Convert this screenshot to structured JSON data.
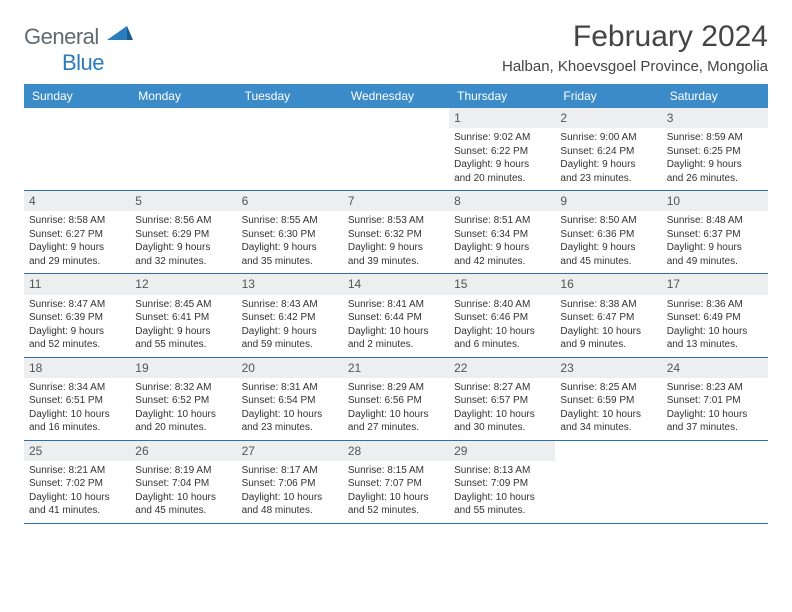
{
  "logo": {
    "text1": "General",
    "text2": "Blue"
  },
  "title": "February 2024",
  "location": "Halban, Khoevsgoel Province, Mongolia",
  "colors": {
    "header_bg": "#3b8bc9",
    "divider": "#2f6fa8",
    "daynum_bg": "#eceeef",
    "text": "#333333",
    "logo_gray": "#5f6b72",
    "logo_blue": "#2b7bbf"
  },
  "day_headers": [
    "Sunday",
    "Monday",
    "Tuesday",
    "Wednesday",
    "Thursday",
    "Friday",
    "Saturday"
  ],
  "weeks": [
    [
      {
        "empty": true
      },
      {
        "empty": true
      },
      {
        "empty": true
      },
      {
        "empty": true
      },
      {
        "num": "1",
        "sunrise": "Sunrise: 9:02 AM",
        "sunset": "Sunset: 6:22 PM",
        "day1": "Daylight: 9 hours",
        "day2": "and 20 minutes."
      },
      {
        "num": "2",
        "sunrise": "Sunrise: 9:00 AM",
        "sunset": "Sunset: 6:24 PM",
        "day1": "Daylight: 9 hours",
        "day2": "and 23 minutes."
      },
      {
        "num": "3",
        "sunrise": "Sunrise: 8:59 AM",
        "sunset": "Sunset: 6:25 PM",
        "day1": "Daylight: 9 hours",
        "day2": "and 26 minutes."
      }
    ],
    [
      {
        "num": "4",
        "sunrise": "Sunrise: 8:58 AM",
        "sunset": "Sunset: 6:27 PM",
        "day1": "Daylight: 9 hours",
        "day2": "and 29 minutes."
      },
      {
        "num": "5",
        "sunrise": "Sunrise: 8:56 AM",
        "sunset": "Sunset: 6:29 PM",
        "day1": "Daylight: 9 hours",
        "day2": "and 32 minutes."
      },
      {
        "num": "6",
        "sunrise": "Sunrise: 8:55 AM",
        "sunset": "Sunset: 6:30 PM",
        "day1": "Daylight: 9 hours",
        "day2": "and 35 minutes."
      },
      {
        "num": "7",
        "sunrise": "Sunrise: 8:53 AM",
        "sunset": "Sunset: 6:32 PM",
        "day1": "Daylight: 9 hours",
        "day2": "and 39 minutes."
      },
      {
        "num": "8",
        "sunrise": "Sunrise: 8:51 AM",
        "sunset": "Sunset: 6:34 PM",
        "day1": "Daylight: 9 hours",
        "day2": "and 42 minutes."
      },
      {
        "num": "9",
        "sunrise": "Sunrise: 8:50 AM",
        "sunset": "Sunset: 6:36 PM",
        "day1": "Daylight: 9 hours",
        "day2": "and 45 minutes."
      },
      {
        "num": "10",
        "sunrise": "Sunrise: 8:48 AM",
        "sunset": "Sunset: 6:37 PM",
        "day1": "Daylight: 9 hours",
        "day2": "and 49 minutes."
      }
    ],
    [
      {
        "num": "11",
        "sunrise": "Sunrise: 8:47 AM",
        "sunset": "Sunset: 6:39 PM",
        "day1": "Daylight: 9 hours",
        "day2": "and 52 minutes."
      },
      {
        "num": "12",
        "sunrise": "Sunrise: 8:45 AM",
        "sunset": "Sunset: 6:41 PM",
        "day1": "Daylight: 9 hours",
        "day2": "and 55 minutes."
      },
      {
        "num": "13",
        "sunrise": "Sunrise: 8:43 AM",
        "sunset": "Sunset: 6:42 PM",
        "day1": "Daylight: 9 hours",
        "day2": "and 59 minutes."
      },
      {
        "num": "14",
        "sunrise": "Sunrise: 8:41 AM",
        "sunset": "Sunset: 6:44 PM",
        "day1": "Daylight: 10 hours",
        "day2": "and 2 minutes."
      },
      {
        "num": "15",
        "sunrise": "Sunrise: 8:40 AM",
        "sunset": "Sunset: 6:46 PM",
        "day1": "Daylight: 10 hours",
        "day2": "and 6 minutes."
      },
      {
        "num": "16",
        "sunrise": "Sunrise: 8:38 AM",
        "sunset": "Sunset: 6:47 PM",
        "day1": "Daylight: 10 hours",
        "day2": "and 9 minutes."
      },
      {
        "num": "17",
        "sunrise": "Sunrise: 8:36 AM",
        "sunset": "Sunset: 6:49 PM",
        "day1": "Daylight: 10 hours",
        "day2": "and 13 minutes."
      }
    ],
    [
      {
        "num": "18",
        "sunrise": "Sunrise: 8:34 AM",
        "sunset": "Sunset: 6:51 PM",
        "day1": "Daylight: 10 hours",
        "day2": "and 16 minutes."
      },
      {
        "num": "19",
        "sunrise": "Sunrise: 8:32 AM",
        "sunset": "Sunset: 6:52 PM",
        "day1": "Daylight: 10 hours",
        "day2": "and 20 minutes."
      },
      {
        "num": "20",
        "sunrise": "Sunrise: 8:31 AM",
        "sunset": "Sunset: 6:54 PM",
        "day1": "Daylight: 10 hours",
        "day2": "and 23 minutes."
      },
      {
        "num": "21",
        "sunrise": "Sunrise: 8:29 AM",
        "sunset": "Sunset: 6:56 PM",
        "day1": "Daylight: 10 hours",
        "day2": "and 27 minutes."
      },
      {
        "num": "22",
        "sunrise": "Sunrise: 8:27 AM",
        "sunset": "Sunset: 6:57 PM",
        "day1": "Daylight: 10 hours",
        "day2": "and 30 minutes."
      },
      {
        "num": "23",
        "sunrise": "Sunrise: 8:25 AM",
        "sunset": "Sunset: 6:59 PM",
        "day1": "Daylight: 10 hours",
        "day2": "and 34 minutes."
      },
      {
        "num": "24",
        "sunrise": "Sunrise: 8:23 AM",
        "sunset": "Sunset: 7:01 PM",
        "day1": "Daylight: 10 hours",
        "day2": "and 37 minutes."
      }
    ],
    [
      {
        "num": "25",
        "sunrise": "Sunrise: 8:21 AM",
        "sunset": "Sunset: 7:02 PM",
        "day1": "Daylight: 10 hours",
        "day2": "and 41 minutes."
      },
      {
        "num": "26",
        "sunrise": "Sunrise: 8:19 AM",
        "sunset": "Sunset: 7:04 PM",
        "day1": "Daylight: 10 hours",
        "day2": "and 45 minutes."
      },
      {
        "num": "27",
        "sunrise": "Sunrise: 8:17 AM",
        "sunset": "Sunset: 7:06 PM",
        "day1": "Daylight: 10 hours",
        "day2": "and 48 minutes."
      },
      {
        "num": "28",
        "sunrise": "Sunrise: 8:15 AM",
        "sunset": "Sunset: 7:07 PM",
        "day1": "Daylight: 10 hours",
        "day2": "and 52 minutes."
      },
      {
        "num": "29",
        "sunrise": "Sunrise: 8:13 AM",
        "sunset": "Sunset: 7:09 PM",
        "day1": "Daylight: 10 hours",
        "day2": "and 55 minutes."
      },
      {
        "empty": true
      },
      {
        "empty": true
      }
    ]
  ]
}
